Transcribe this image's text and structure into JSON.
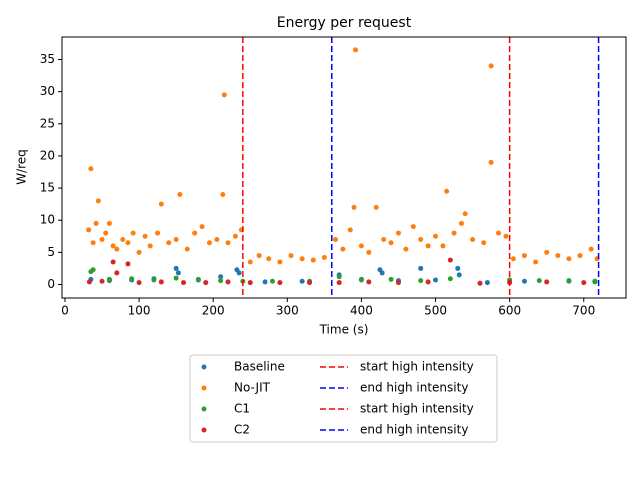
{
  "chart_data": {
    "type": "scatter",
    "title": "Energy per request",
    "x_label": "Time (s)",
    "y_label": "W/req",
    "xlim": [
      -4,
      757
    ],
    "ylim": [
      -2.1,
      38.5
    ],
    "xticks": [
      0,
      100,
      200,
      300,
      400,
      500,
      600,
      700
    ],
    "yticks": [
      0,
      5,
      10,
      15,
      20,
      25,
      30,
      35
    ],
    "legend": "below",
    "series": [
      {
        "name": "Baseline",
        "color": "#1f77b4",
        "x": [
          35,
          60,
          90,
          120,
          150,
          153,
          180,
          210,
          232,
          235,
          270,
          320,
          370,
          400,
          425,
          428,
          450,
          480,
          500,
          530,
          532,
          570,
          620,
          680,
          715
        ],
        "values": [
          0.8,
          0.6,
          0.7,
          0.9,
          2.5,
          1.8,
          0.7,
          1.2,
          2.3,
          1.8,
          0.4,
          0.5,
          1.5,
          0.8,
          2.3,
          1.8,
          0.6,
          2.5,
          0.7,
          2.5,
          1.5,
          0.3,
          0.5,
          0.6,
          0.5
        ]
      },
      {
        "name": "No-JIT",
        "color": "#ff7f0e",
        "x": [
          32,
          35,
          38,
          42,
          45,
          50,
          55,
          60,
          65,
          70,
          78,
          85,
          92,
          100,
          108,
          115,
          125,
          130,
          140,
          150,
          155,
          165,
          175,
          185,
          195,
          205,
          213,
          215,
          220,
          230,
          238,
          250,
          262,
          275,
          290,
          305,
          320,
          335,
          350,
          365,
          375,
          385,
          390,
          392,
          400,
          410,
          420,
          430,
          440,
          450,
          460,
          470,
          480,
          490,
          500,
          510,
          515,
          525,
          535,
          540,
          550,
          565,
          575,
          575,
          585,
          595,
          605,
          620,
          635,
          650,
          665,
          680,
          695,
          710,
          718
        ],
        "values": [
          8.5,
          18,
          6.5,
          9.5,
          13,
          7,
          8,
          9.5,
          6,
          5.5,
          7,
          6.5,
          8,
          5,
          7.5,
          6,
          8,
          12.5,
          6.5,
          7,
          14,
          5.5,
          8,
          9,
          6.5,
          7,
          14,
          29.5,
          6.5,
          7.5,
          8.5,
          3.5,
          4.5,
          4,
          3.5,
          4.5,
          4,
          3.8,
          4.2,
          7,
          5.5,
          8.5,
          12,
          36.5,
          6,
          5,
          12,
          7,
          6.5,
          8,
          5.5,
          9,
          7,
          6,
          7.5,
          6,
          14.5,
          8,
          9.5,
          11,
          7,
          6.5,
          34,
          19,
          8,
          7.5,
          4,
          4.5,
          3.5,
          5,
          4.5,
          4,
          4.5,
          5.5,
          4
        ]
      },
      {
        "name": "C1",
        "color": "#2ca02c",
        "x": [
          35,
          38,
          60,
          90,
          120,
          150,
          180,
          210,
          240,
          280,
          330,
          370,
          400,
          440,
          480,
          520,
          560,
          600,
          640,
          680,
          715
        ],
        "values": [
          2,
          2.3,
          0.8,
          0.9,
          0.7,
          1,
          0.8,
          0.6,
          0.5,
          0.5,
          0.5,
          1.2,
          0.7,
          0.8,
          0.6,
          0.9,
          0.2,
          0.7,
          0.6,
          0.5,
          0.4
        ]
      },
      {
        "name": "C2",
        "color": "#d62728",
        "x": [
          33,
          50,
          65,
          70,
          85,
          100,
          130,
          160,
          190,
          220,
          250,
          290,
          330,
          370,
          410,
          450,
          490,
          520,
          560,
          600,
          650,
          700
        ],
        "values": [
          0.4,
          0.5,
          3.5,
          1.8,
          3.2,
          0.3,
          0.4,
          0.3,
          0.3,
          0.4,
          0.3,
          0.3,
          0.3,
          0.3,
          0.4,
          0.3,
          0.4,
          3.8,
          0.2,
          0.3,
          0.4,
          0.3
        ]
      }
    ],
    "vlines": [
      {
        "x": 240,
        "name": "start high intensity",
        "color": "#ff0000"
      },
      {
        "x": 360,
        "name": "end high intensity",
        "color": "#0000ff"
      },
      {
        "x": 600,
        "name": "start high intensity",
        "color": "#ff0000"
      },
      {
        "x": 720,
        "name": "end high intensity",
        "color": "#0000ff"
      }
    ]
  }
}
